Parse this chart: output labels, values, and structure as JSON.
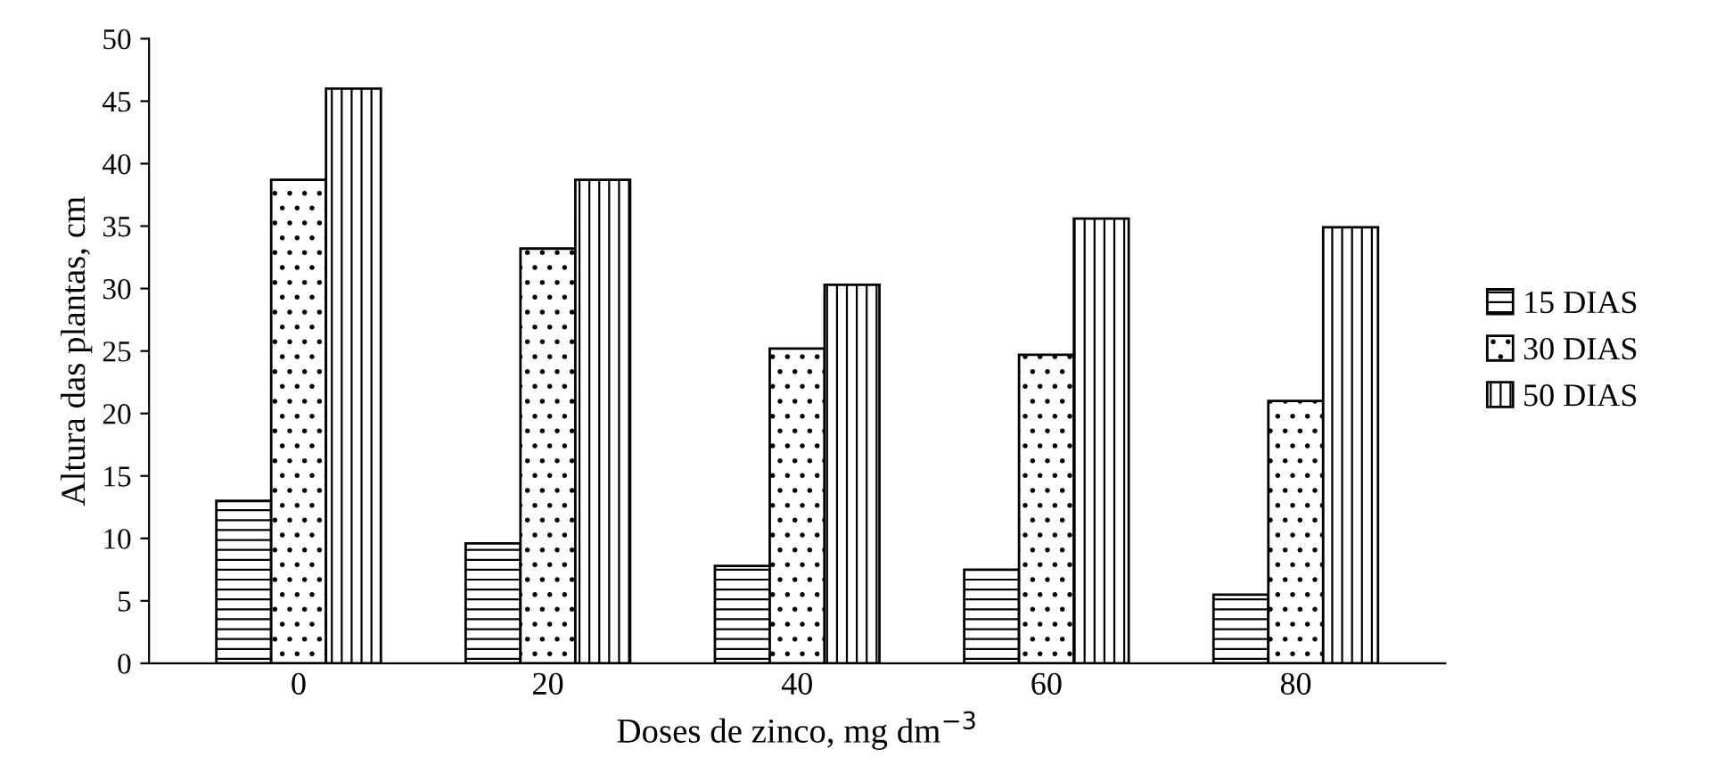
{
  "chart_data": {
    "type": "bar",
    "xlabel": "Doses de zinco, mg dm$^{−3}$",
    "ylabel": "Altura das plantas, cm",
    "categories": [
      "0",
      "20",
      "40",
      "60",
      "80"
    ],
    "series": [
      {
        "name": "15 DIAS",
        "color": "#000000",
        "values": [
          13,
          9.6,
          7.8,
          7.5,
          5.5
        ]
      },
      {
        "name": "30 DIAS",
        "color": "#000000",
        "values": [
          38.7,
          33.2,
          25.2,
          24.7,
          21
        ]
      },
      {
        "name": "50 DIAS",
        "color": "#000000",
        "values": [
          46,
          38.7,
          30.3,
          35.6,
          34.9
        ]
      }
    ],
    "ylim": [
      0,
      50
    ],
    "yticks": [
      0,
      5,
      10,
      15,
      20,
      25,
      30,
      35,
      40,
      45,
      50
    ],
    "grid": false,
    "legend": "right"
  }
}
